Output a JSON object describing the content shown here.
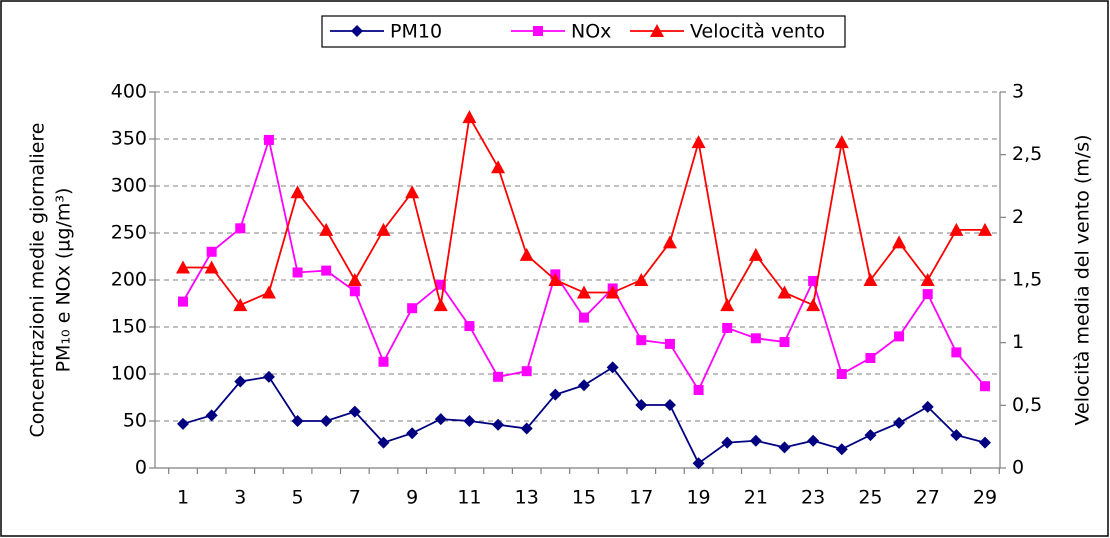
{
  "chart_data": {
    "type": "line",
    "categories": [
      "1",
      null,
      "3",
      null,
      "5",
      null,
      "7",
      null,
      "9",
      null,
      "11",
      null,
      "13",
      null,
      "15",
      null,
      "17",
      null,
      "19",
      null,
      "21",
      null,
      "23",
      null,
      "25",
      null,
      "27",
      null,
      "29"
    ],
    "y_label": [
      "Concentrazioni medie giornaliere",
      "PM₁₀ e NOx (µg/m³)"
    ],
    "y2_label": "Velocità media del vento (m/s)",
    "ylim": [
      0,
      400
    ],
    "yticks": [
      0,
      50,
      100,
      150,
      200,
      250,
      300,
      350,
      400
    ],
    "y2lim": [
      0,
      3
    ],
    "y2ticks": [
      0,
      {
        "value": 0.5,
        "label": "0,5"
      },
      1,
      {
        "value": 1.5,
        "label": "1,5"
      },
      2,
      {
        "value": 2.5,
        "label": "2,5"
      },
      3
    ],
    "grid": true,
    "legend": "top",
    "series": [
      {
        "name": "PM10",
        "color": "#000080",
        "marker": "diamond",
        "values": [
          47,
          56,
          92,
          97,
          50,
          50,
          60,
          27,
          37,
          52,
          50,
          46,
          42,
          78,
          88,
          107,
          67,
          67,
          5,
          27,
          29,
          22,
          29,
          20,
          35,
          48,
          65,
          35,
          27
        ]
      },
      {
        "name": "NOx",
        "color": "#FF00FF",
        "marker": "square",
        "values": [
          177,
          230,
          255,
          349,
          208,
          210,
          188,
          113,
          170,
          195,
          151,
          97,
          103,
          206,
          160,
          191,
          136,
          132,
          83,
          149,
          138,
          134,
          199,
          100,
          117,
          140,
          185,
          123,
          87
        ]
      },
      {
        "name": "Velocità vento",
        "color": "#FF0000",
        "marker": "triangle",
        "axis": "y2",
        "values": [
          1.6,
          1.6,
          1.3,
          1.4,
          2.2,
          1.9,
          1.5,
          1.9,
          2.2,
          1.3,
          2.8,
          2.4,
          1.7,
          1.5,
          1.4,
          1.4,
          1.5,
          1.8,
          2.6,
          1.3,
          1.7,
          1.4,
          1.3,
          2.6,
          1.5,
          1.8,
          1.5,
          1.9,
          1.9
        ]
      }
    ]
  }
}
